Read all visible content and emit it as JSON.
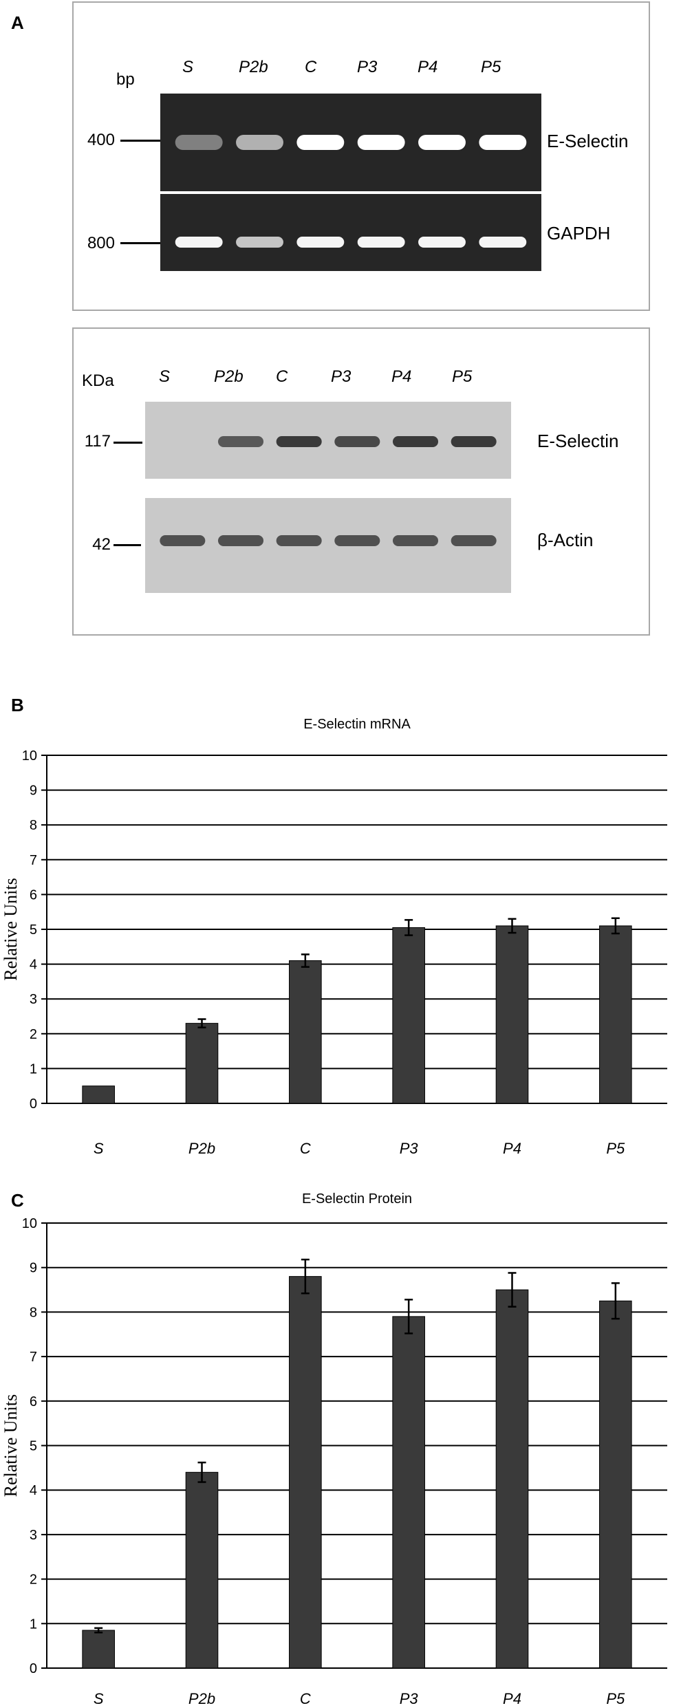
{
  "figure": {
    "panel_a_label": "A",
    "panel_b_label": "B",
    "panel_c_label": "C"
  },
  "rtpcr": {
    "unit": "bp",
    "lanes": [
      "S",
      "P2b",
      "C",
      "P3",
      "P4",
      "P5"
    ],
    "markers": [
      "400",
      "800"
    ],
    "rows": [
      {
        "name": "E-Selectin",
        "intensity": [
          0.35,
          0.6,
          1.0,
          1.0,
          1.0,
          1.0
        ]
      },
      {
        "name": "GAPDH",
        "intensity": [
          0.95,
          0.7,
          0.95,
          0.95,
          0.95,
          0.95
        ]
      }
    ]
  },
  "western": {
    "unit": "KDa",
    "lanes": [
      "S",
      "P2b",
      "C",
      "P3",
      "P4",
      "P5"
    ],
    "markers": [
      "117",
      "42"
    ],
    "rows": [
      {
        "name": "E-Selectin",
        "intensity": [
          0.0,
          0.75,
          0.95,
          0.85,
          0.95,
          0.95
        ]
      },
      {
        "name": "β-Actin",
        "intensity": [
          0.8,
          0.8,
          0.8,
          0.8,
          0.8,
          0.8
        ]
      }
    ]
  },
  "chart_data": [
    {
      "type": "bar",
      "title": "E-Selectin mRNA",
      "ylabel": "Relative Units",
      "xlabel": "",
      "categories": [
        "S",
        "P2b",
        "C",
        "P3",
        "P4",
        "P5"
      ],
      "values": [
        0.5,
        2.3,
        4.1,
        5.05,
        5.1,
        5.1
      ],
      "errors": [
        0.0,
        0.12,
        0.18,
        0.22,
        0.2,
        0.22
      ],
      "ylim": [
        0,
        10
      ],
      "yticks": [
        "0",
        "1",
        "2",
        "3",
        "4",
        "5",
        "6",
        "7",
        "8",
        "9",
        "10"
      ],
      "grid": true,
      "bar_color": "#3a3a3a"
    },
    {
      "type": "bar",
      "title": "E-Selectin Protein",
      "ylabel": "Relative Units",
      "xlabel": "",
      "categories": [
        "S",
        "P2b",
        "C",
        "P3",
        "P4",
        "P5"
      ],
      "values": [
        0.85,
        4.4,
        8.8,
        7.9,
        8.5,
        8.25
      ],
      "errors": [
        0.05,
        0.22,
        0.38,
        0.38,
        0.38,
        0.4
      ],
      "ylim": [
        0,
        10
      ],
      "yticks": [
        "0",
        "1",
        "2",
        "3",
        "4",
        "5",
        "6",
        "7",
        "8",
        "9",
        "10"
      ],
      "grid": true,
      "bar_color": "#3a3a3a"
    }
  ]
}
